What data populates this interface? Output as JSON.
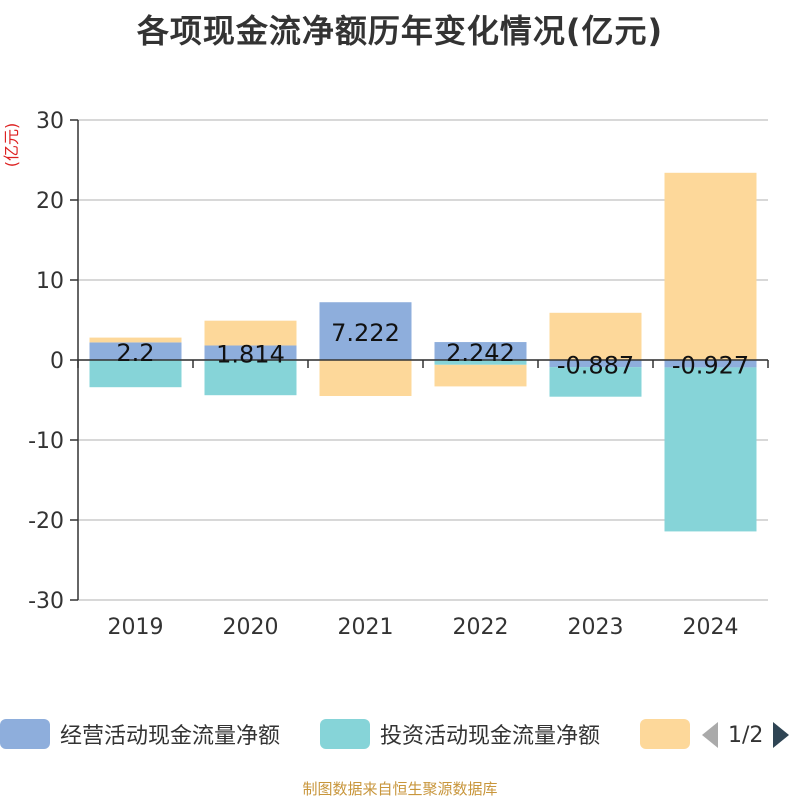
{
  "title": "各项现金流净额历年变化情况(亿元)",
  "chart_data": {
    "type": "bar",
    "stacked": true,
    "unit_label": "(亿元)",
    "categories": [
      "2019",
      "2020",
      "2021",
      "2022",
      "2023",
      "2024"
    ],
    "ylim": [
      -30,
      30
    ],
    "yticks": [
      30,
      20,
      10,
      0,
      -10,
      -20,
      -30
    ],
    "series": [
      {
        "name": "经营活动现金流量净额",
        "color": "#8eaedc",
        "values": [
          2.2,
          1.814,
          7.222,
          2.242,
          -0.887,
          -0.927
        ],
        "labels": [
          "2.2",
          "1.814",
          "7.222",
          "2.242",
          "-0.887",
          "-0.927"
        ]
      },
      {
        "name": "投资活动现金流量净额",
        "color": "#86d4d8",
        "values": [
          -3.4,
          -4.4,
          0,
          -0.6,
          -3.7,
          -20.5
        ]
      },
      {
        "name": "",
        "color": "#fdd89a",
        "values": [
          0.6,
          3.1,
          -4.5,
          -2.7,
          5.9,
          23.4
        ]
      }
    ]
  },
  "legend": {
    "page": "1/2"
  },
  "source": "制图数据来自恒生聚源数据库"
}
